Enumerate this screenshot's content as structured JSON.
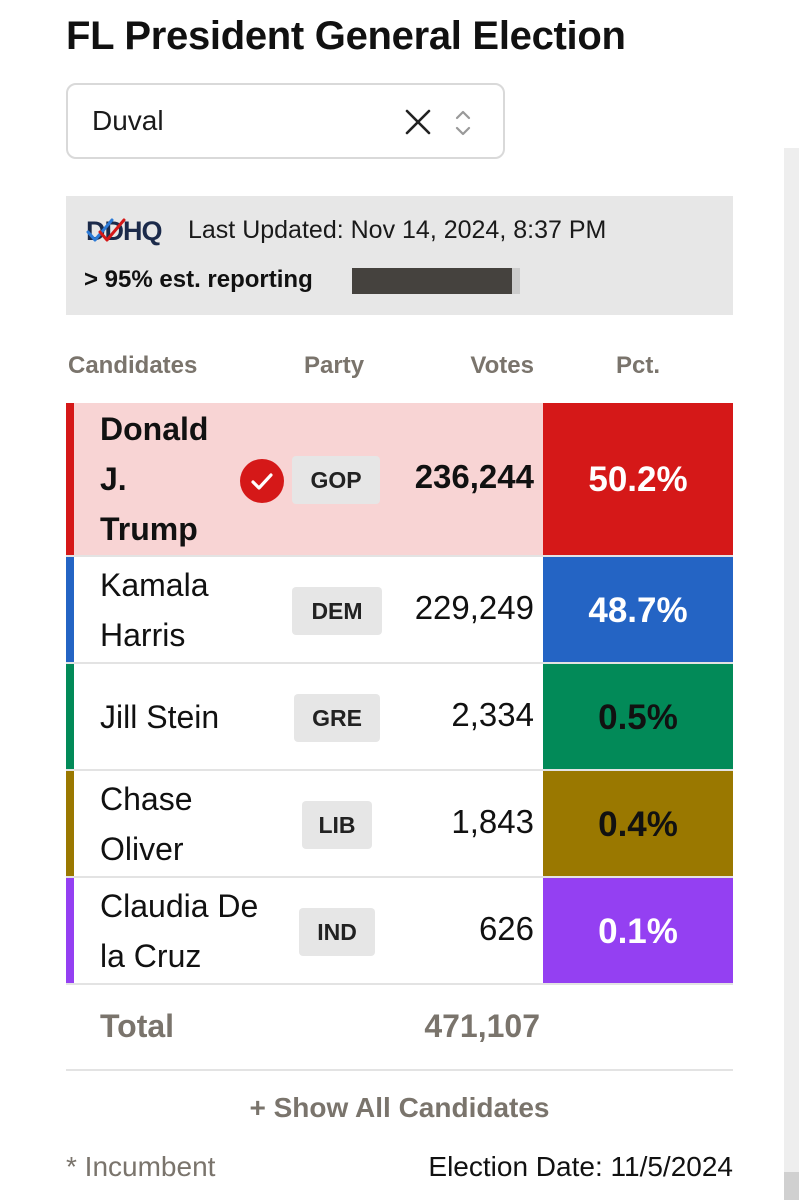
{
  "title": "FL President General Election",
  "county_select": {
    "value": "Duval",
    "clear_icon": "close-icon",
    "toggle_icon": "chevron-updown-icon"
  },
  "info": {
    "logo_text": "DDHQ",
    "last_updated": "Last Updated: Nov 14, 2024, 8:37 PM",
    "reporting": "> 95% est. reporting",
    "reporting_fraction": 0.95
  },
  "table": {
    "headers": {
      "candidates": "Candidates",
      "party": "Party",
      "votes": "Votes",
      "pct": "Pct."
    },
    "rows": [
      {
        "name_lines": [
          "Donald",
          "J.",
          "Trump"
        ],
        "party": "GOP",
        "votes": "236,244",
        "pct": "50.2%",
        "winner": true,
        "color": "#d51818",
        "row_bg": "#f8d4d4",
        "pct_text_color": "#ffffff"
      },
      {
        "name_lines": [
          "Kamala",
          "Harris"
        ],
        "party": "DEM",
        "votes": "229,249",
        "pct": "48.7%",
        "winner": false,
        "color": "#2464c4",
        "pct_text_color": "#ffffff"
      },
      {
        "name_lines": [
          "Jill Stein"
        ],
        "party": "GRE",
        "votes": "2,334",
        "pct": "0.5%",
        "winner": false,
        "color": "#028a58",
        "pct_text_color": "#111111"
      },
      {
        "name_lines": [
          "Chase",
          "Oliver"
        ],
        "party": "LIB",
        "votes": "1,843",
        "pct": "0.4%",
        "winner": false,
        "color": "#9a7800",
        "pct_text_color": "#111111"
      },
      {
        "name_lines": [
          "Claudia De",
          "la Cruz"
        ],
        "party": "IND",
        "votes": "626",
        "pct": "0.1%",
        "winner": false,
        "color": "#9440f2",
        "pct_text_color": "#ffffff"
      }
    ],
    "total_label": "Total",
    "total_votes": "471,107"
  },
  "show_all": "+ Show All Candidates",
  "incumbent_note": "* Incumbent",
  "election_date": "Election Date: 11/5/2024"
}
